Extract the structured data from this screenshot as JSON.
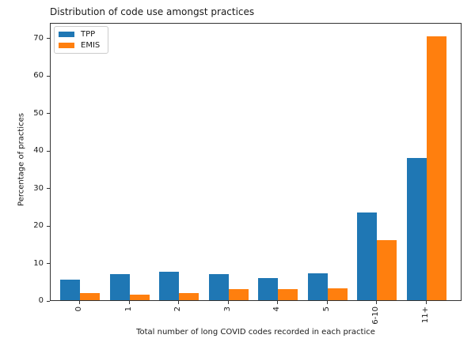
{
  "chart_data": {
    "type": "bar",
    "title": "Distribution of code use amongst practices",
    "xlabel": "Total number of long COVID codes recorded in each practice",
    "ylabel": "Percentage of practices",
    "categories": [
      "0",
      "1",
      "2",
      "3",
      "4",
      "5",
      "6-10",
      "11+"
    ],
    "series": [
      {
        "name": "TPP",
        "color": "#1f77b4",
        "values": [
          5.5,
          7.0,
          7.6,
          7.0,
          6.0,
          7.2,
          23.5,
          37.9
        ]
      },
      {
        "name": "EMIS",
        "color": "#ff7f0e",
        "values": [
          2.0,
          1.4,
          2.0,
          2.9,
          2.9,
          3.1,
          16.0,
          70.5
        ]
      }
    ],
    "yticks": [
      0,
      10,
      20,
      30,
      40,
      50,
      60,
      70
    ],
    "ylim": [
      0,
      74.2
    ],
    "grid": false,
    "legend_position": "upper left",
    "axis_color": "#333333",
    "text_color": "#1a1a1a",
    "background": "#ffffff"
  }
}
